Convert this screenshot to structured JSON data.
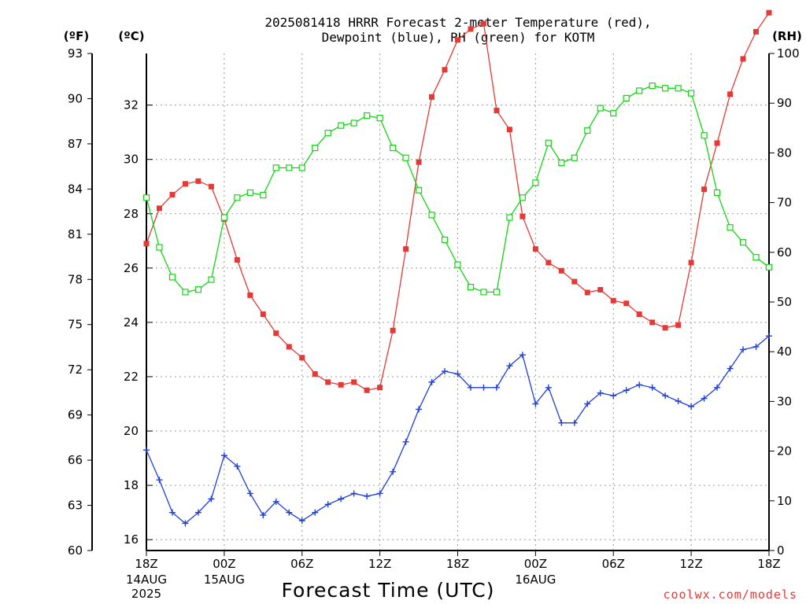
{
  "title": {
    "line1": "2025081418 HRRR Forecast 2-meter Temperature (red),",
    "line2": "Dewpoint (blue), RH (green) for KOTM"
  },
  "credit": {
    "text": "coolwx.com/models",
    "color": "#e53935"
  },
  "colors": {
    "temperature": "#e53935",
    "dewpoint": "#1f3fd6",
    "rh": "#13d613",
    "grid": "#9a9a9a",
    "axis": "#000000"
  },
  "chart_data": {
    "type": "line",
    "xlabel": "Forecast Time (UTC)",
    "x_ticks": [
      {
        "label": "18Z",
        "sub": [
          "14AUG",
          "2025"
        ]
      },
      {
        "label": "00Z",
        "sub": [
          "15AUG"
        ]
      },
      {
        "label": "06Z",
        "sub": []
      },
      {
        "label": "12Z",
        "sub": []
      },
      {
        "label": "18Z",
        "sub": []
      },
      {
        "label": "00Z",
        "sub": [
          "16AUG"
        ]
      },
      {
        "label": "06Z",
        "sub": []
      },
      {
        "label": "12Z",
        "sub": []
      },
      {
        "label": "18Z",
        "sub": []
      }
    ],
    "x_step_hours": 1,
    "y_left_f": {
      "unit_label": "(ºF)",
      "ticks": [
        "93",
        "90",
        "87",
        "84",
        "81",
        "78",
        "75",
        "72",
        "69",
        "66",
        "63",
        "60"
      ],
      "range": [
        60,
        93
      ]
    },
    "y_left_c": {
      "unit_label": "(ºC)",
      "ticks": [
        "32",
        "30",
        "28",
        "26",
        "24",
        "22",
        "20",
        "18",
        "16"
      ],
      "range": [
        15.6,
        33.9
      ]
    },
    "y_right_rh": {
      "unit_label": "(RH)",
      "ticks": [
        "100",
        "90",
        "80",
        "70",
        "60",
        "50",
        "40",
        "30",
        "20",
        "10",
        "0"
      ],
      "range": [
        0,
        100
      ]
    },
    "grid": true,
    "series": [
      {
        "key": "temperature",
        "unit": "C",
        "marker": "filled-square",
        "values": [
          26.9,
          28.2,
          28.7,
          29.1,
          29.2,
          29.0,
          27.8,
          26.3,
          25.0,
          24.3,
          23.6,
          23.1,
          22.7,
          22.1,
          21.8,
          21.7,
          21.8,
          21.5,
          21.6,
          23.7,
          26.7,
          29.9,
          32.3,
          33.3,
          34.4,
          34.8,
          35.0,
          31.8,
          31.1,
          27.9,
          26.7,
          26.2,
          25.9,
          25.5,
          25.1,
          25.2,
          24.8,
          24.7,
          24.3,
          24.0,
          23.8,
          23.9,
          26.2,
          28.9,
          30.6,
          32.4,
          33.7,
          34.7,
          35.4
        ]
      },
      {
        "key": "dewpoint",
        "unit": "C",
        "marker": "plus",
        "values": [
          19.3,
          18.2,
          17.0,
          16.6,
          17.0,
          17.5,
          19.1,
          18.7,
          17.7,
          16.9,
          17.4,
          17.0,
          16.7,
          17.0,
          17.3,
          17.5,
          17.7,
          17.6,
          17.7,
          18.5,
          19.6,
          20.8,
          21.8,
          22.2,
          22.1,
          21.6,
          21.6,
          21.6,
          22.4,
          22.8,
          21.0,
          21.6,
          20.3,
          20.3,
          21.0,
          21.4,
          21.3,
          21.5,
          21.7,
          21.6,
          21.3,
          21.1,
          20.9,
          21.2,
          21.6,
          22.3,
          23.0,
          23.1,
          23.5
        ]
      },
      {
        "key": "rh",
        "unit": "%",
        "marker": "hollow-square",
        "values": [
          71,
          61,
          55,
          52,
          52.5,
          54.5,
          67,
          71,
          72,
          71.5,
          77,
          77,
          77,
          81,
          84,
          85.5,
          86,
          87.5,
          87,
          81,
          79,
          72.5,
          67.5,
          62.5,
          57.5,
          53,
          52,
          52,
          67,
          71,
          74,
          82,
          78,
          79,
          84.5,
          89,
          88,
          91,
          92.5,
          93.5,
          93,
          93,
          92,
          83.5,
          72,
          65,
          62,
          59,
          57
        ]
      }
    ]
  }
}
